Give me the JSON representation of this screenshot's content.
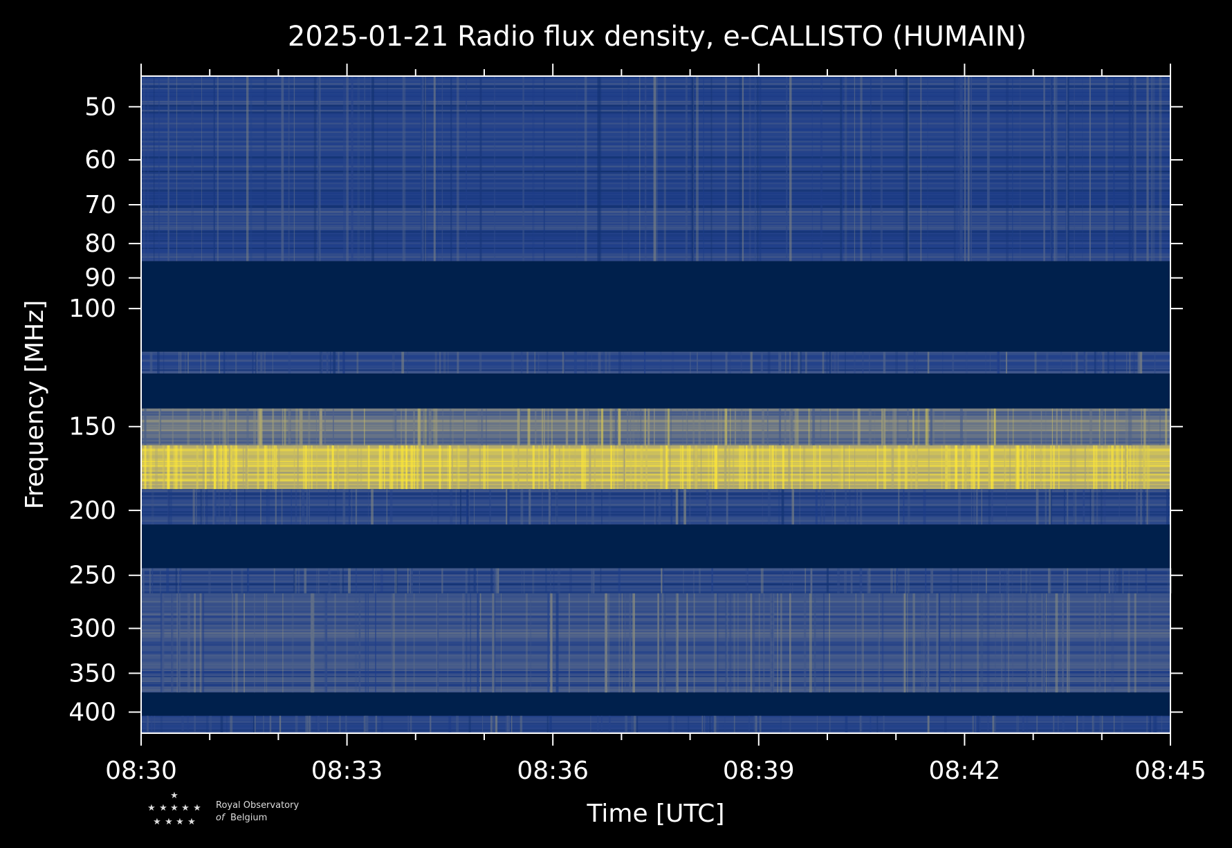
{
  "chart_data": {
    "type": "heatmap",
    "title": "2025-01-21 Radio flux density, e-CALLISTO (HUMAIN)",
    "xlabel": "Time [UTC]",
    "ylabel": "Frequency [MHz]",
    "x_ticks": [
      "08:30",
      "08:33",
      "08:36",
      "08:39",
      "08:42",
      "08:45"
    ],
    "x_range": [
      "08:30",
      "08:45"
    ],
    "y_scale": "log",
    "y_ticks": [
      50,
      60,
      70,
      80,
      90,
      100,
      150,
      200,
      250,
      300,
      350,
      400
    ],
    "y_range": [
      45,
      430
    ],
    "colormap": [
      "#00204c",
      "#1d3d8a",
      "#5a6a8a",
      "#a6a07a",
      "#fde737"
    ],
    "bands": [
      {
        "f_low": 45,
        "f_high": 85,
        "level": 0.28
      },
      {
        "f_low": 85,
        "f_high": 116,
        "level": 0.0
      },
      {
        "f_low": 116,
        "f_high": 125,
        "level": 0.3
      },
      {
        "f_low": 125,
        "f_high": 141,
        "level": 0.0
      },
      {
        "f_low": 141,
        "f_high": 160,
        "level": 0.55
      },
      {
        "f_low": 160,
        "f_high": 186,
        "level": 0.85
      },
      {
        "f_low": 186,
        "f_high": 210,
        "level": 0.3
      },
      {
        "f_low": 210,
        "f_high": 244,
        "level": 0.0
      },
      {
        "f_low": 244,
        "f_high": 266,
        "level": 0.3
      },
      {
        "f_low": 266,
        "f_high": 374,
        "level": 0.38
      },
      {
        "f_low": 374,
        "f_high": 405,
        "level": 0.0
      },
      {
        "f_low": 405,
        "f_high": 430,
        "level": 0.3
      }
    ]
  },
  "logo": {
    "line1": "Royal Observatory",
    "line2_prefix": "of",
    "line2": "Belgium"
  }
}
